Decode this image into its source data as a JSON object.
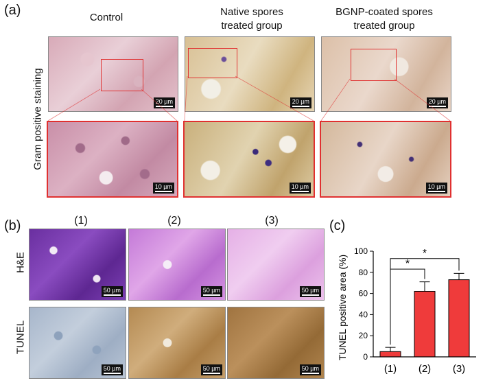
{
  "panel_a": {
    "label": "(a)",
    "row_label": "Gram positive staining",
    "columns": [
      {
        "title_line1": "Control",
        "title_line2": ""
      },
      {
        "title_line1": "Native spores",
        "title_line2": "treated group"
      },
      {
        "title_line1": "BGNP-coated spores",
        "title_line2": "treated group"
      }
    ],
    "scale_top": "20 µm",
    "scale_bottom": "10 µm"
  },
  "panel_b": {
    "label": "(b)",
    "columns": [
      "(1)",
      "(2)",
      "(3)"
    ],
    "rows": [
      "H&E",
      "TUNEL"
    ],
    "scale": "50 µm"
  },
  "panel_c": {
    "label": "(c)",
    "sig_marks": [
      "*",
      "*"
    ]
  },
  "chart_data": {
    "type": "bar",
    "categories": [
      "(1)",
      "(2)",
      "(3)"
    ],
    "values": [
      5,
      62,
      73
    ],
    "errors": [
      4,
      9,
      6
    ],
    "ylabel": "TUNEL positive area (%)",
    "ylim": [
      0,
      100
    ],
    "yticks": [
      0,
      20,
      40,
      60,
      80,
      100
    ],
    "bar_color": "#ef3b3b",
    "significance": [
      {
        "from": "(1)",
        "to": "(2)",
        "mark": "*"
      },
      {
        "from": "(1)",
        "to": "(3)",
        "mark": "*"
      }
    ]
  }
}
